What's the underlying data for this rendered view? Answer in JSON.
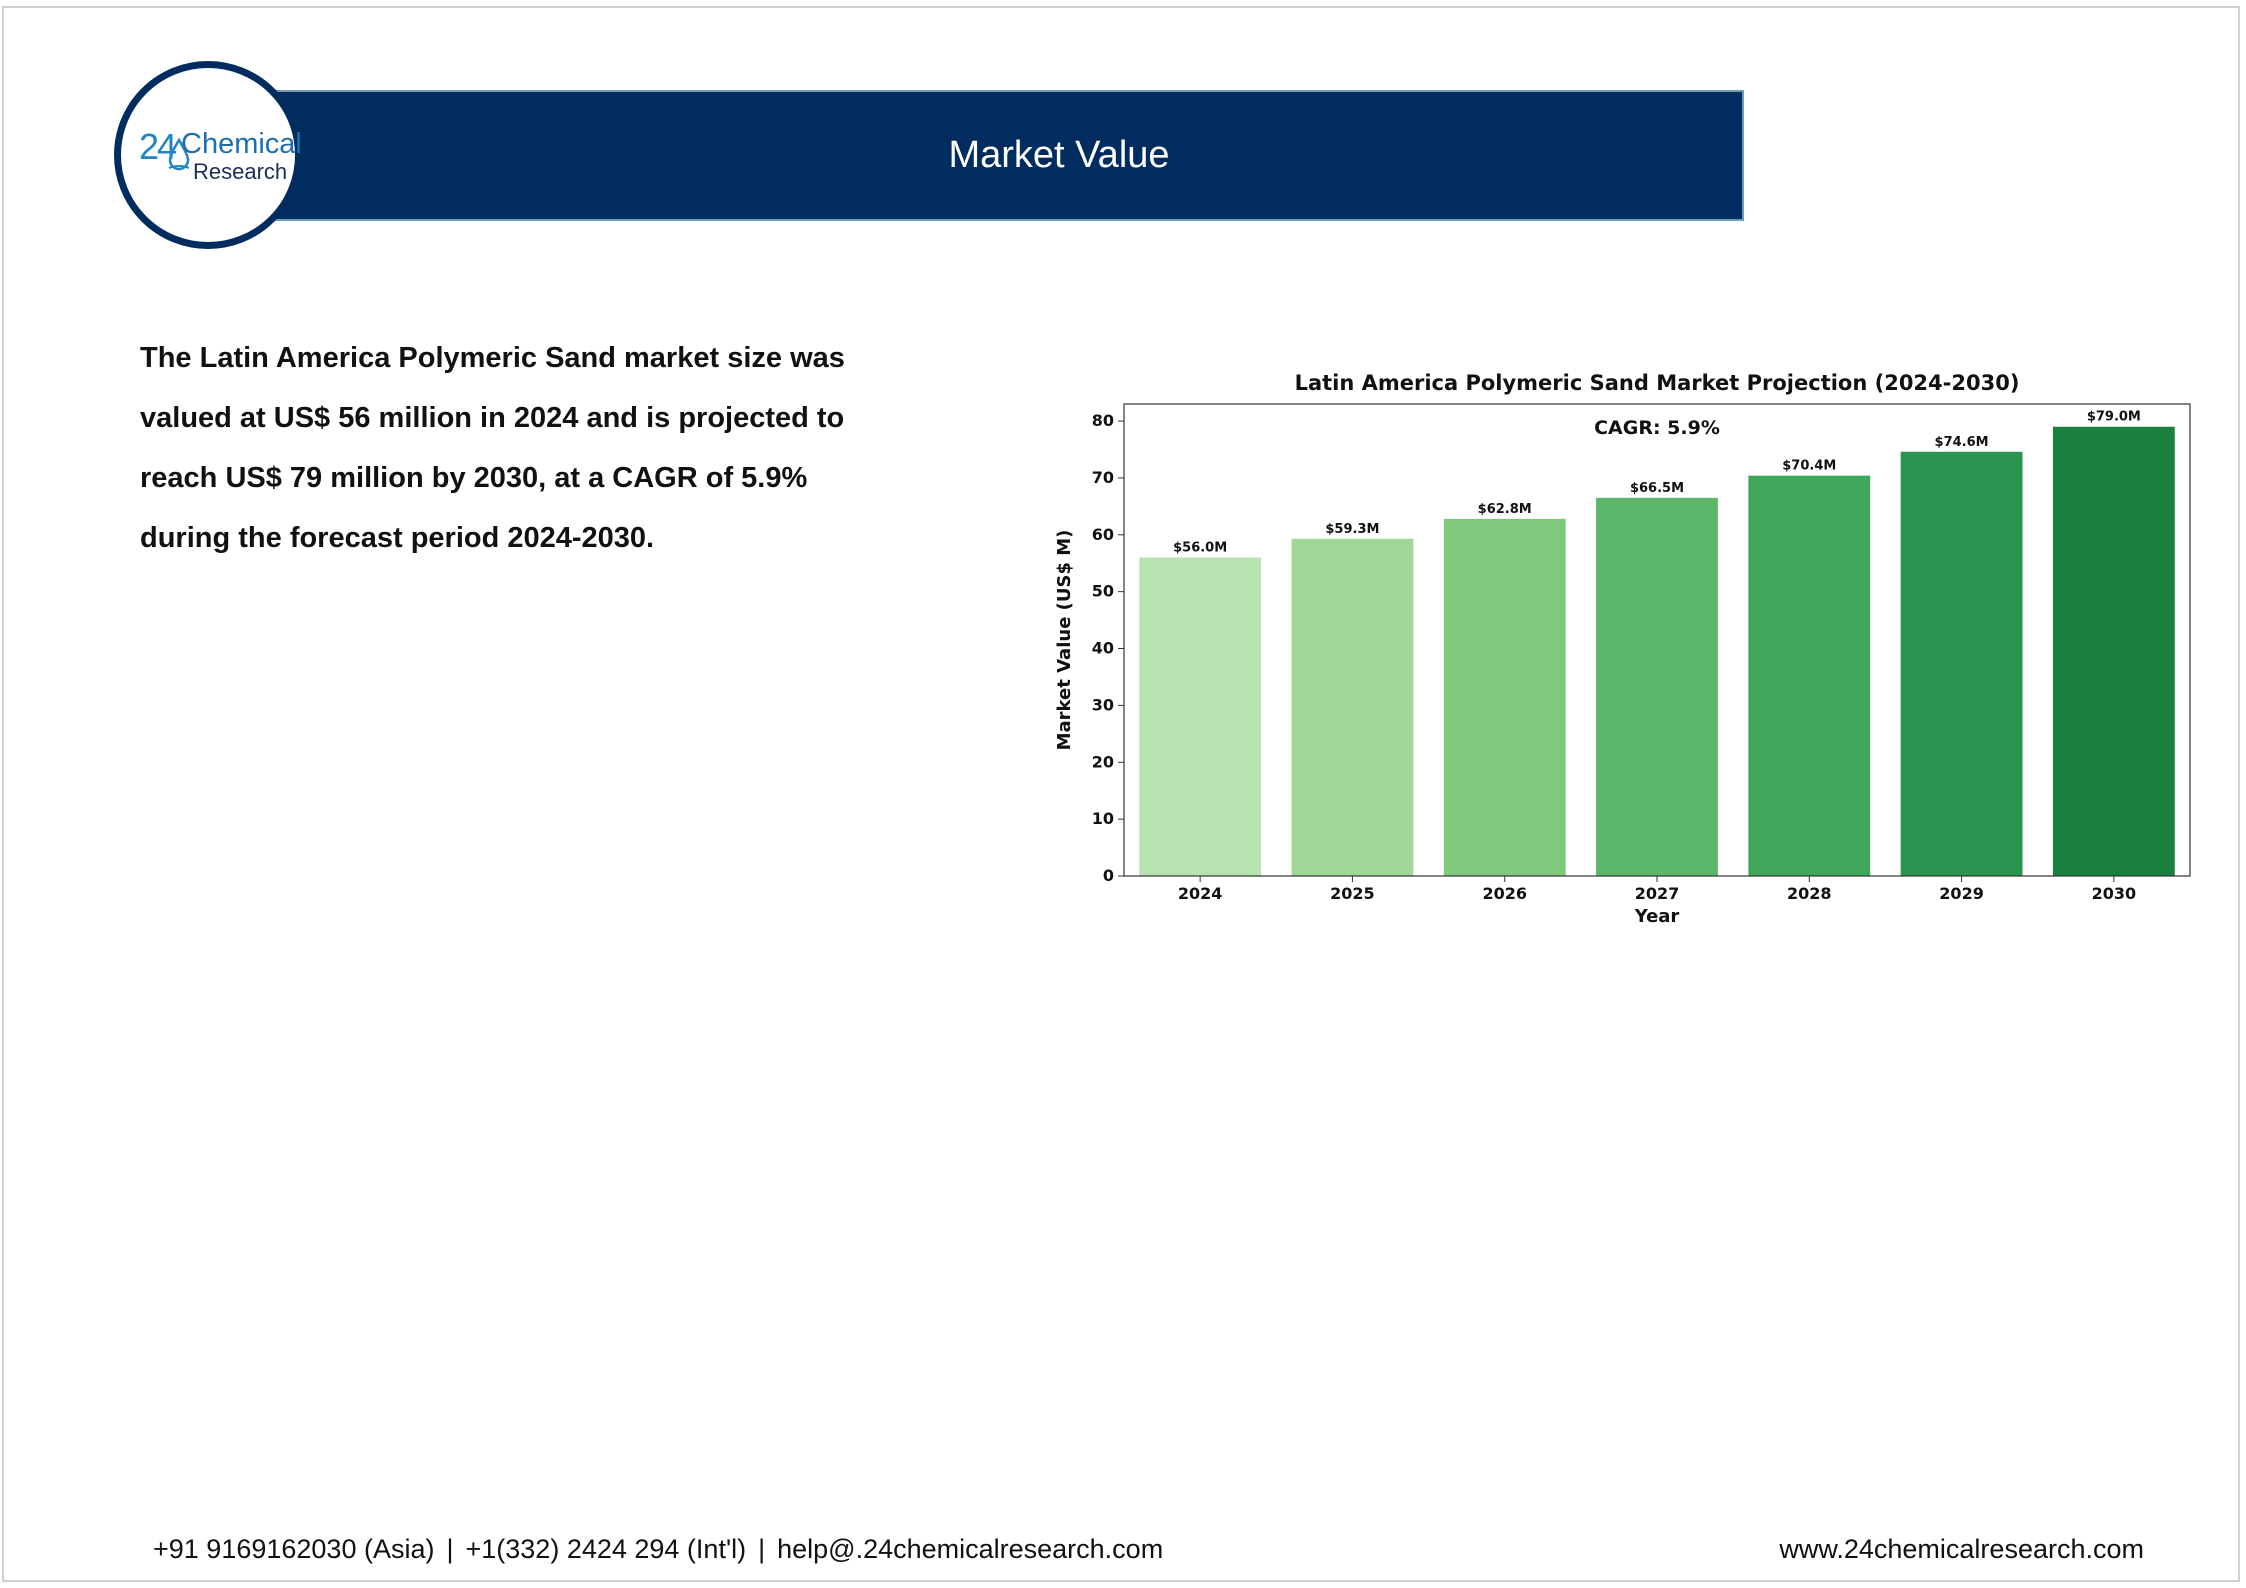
{
  "header": {
    "title": "Market Value",
    "logo": {
      "number": "24",
      "line1": "Chemical",
      "line2": "Research"
    }
  },
  "summary": {
    "text": "The Latin America Polymeric Sand market size was valued at US$ 56 million in 2024 and is projected to reach US$ 79 million by 2030, at a CAGR of 5.9% during the forecast period 2024-2030."
  },
  "chart_data": {
    "type": "bar",
    "title": "Latin America Polymeric Sand Market Projection (2024-2030)",
    "annotation": "CAGR: 5.9%",
    "xlabel": "Year",
    "ylabel": "Market Value (US$ M)",
    "categories": [
      "2024",
      "2025",
      "2026",
      "2027",
      "2028",
      "2029",
      "2030"
    ],
    "values": [
      56.0,
      59.3,
      62.8,
      66.5,
      70.4,
      74.6,
      79.0
    ],
    "data_labels": [
      "$56.0M",
      "$59.3M",
      "$62.8M",
      "$66.5M",
      "$70.4M",
      "$74.6M",
      "$79.0M"
    ],
    "ylim": [
      0,
      83
    ],
    "yticks": [
      0,
      10,
      20,
      30,
      40,
      50,
      60,
      70,
      80
    ],
    "grid": false,
    "colors": [
      "#b7e3b0",
      "#a0d796",
      "#7fc97d",
      "#5db76b",
      "#3fa65a",
      "#2b9350",
      "#1a803e"
    ]
  },
  "footer": {
    "phone_asia": "+91 9169162030 (Asia)",
    "phone_intl": "+1(332) 2424 294 (Int'l)",
    "email": "help@.24chemicalresearch.com",
    "separator": "|",
    "website": "www.24chemicalresearch.com"
  }
}
